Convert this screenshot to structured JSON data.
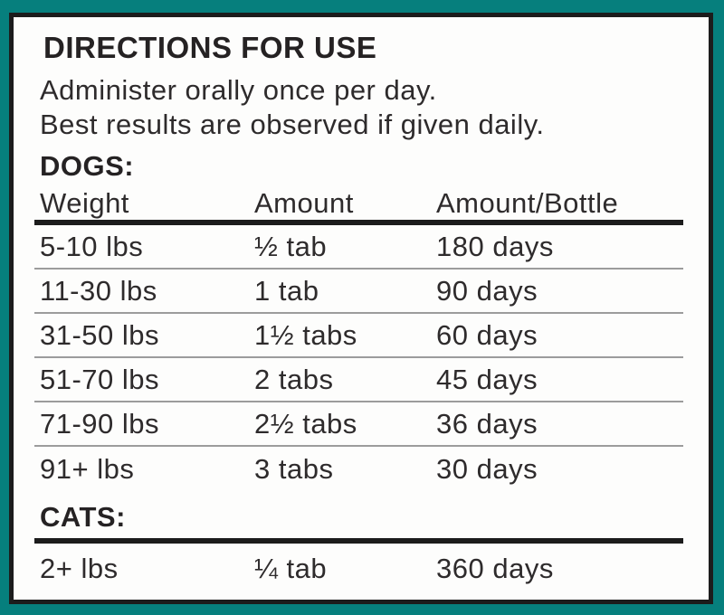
{
  "label": {
    "title": "DIRECTIONS FOR USE",
    "intro": {
      "line1": "Administer orally once per day.",
      "line2": "Best results are observed if given daily."
    },
    "dogs": {
      "heading": "DOGS:",
      "columns": {
        "weight": "Weight",
        "amount": "Amount",
        "bottle": "Amount/Bottle"
      },
      "rows": [
        {
          "weight": "5-10 lbs",
          "amount": "½ tab",
          "bottle": "180 days"
        },
        {
          "weight": "11-30 lbs",
          "amount": "1 tab",
          "bottle": "90 days"
        },
        {
          "weight": "31-50 lbs",
          "amount": "1½ tabs",
          "bottle": "60 days"
        },
        {
          "weight": "51-70 lbs",
          "amount": "2 tabs",
          "bottle": "45 days"
        },
        {
          "weight": "71-90 lbs",
          "amount": "2½ tabs",
          "bottle": "36 days"
        },
        {
          "weight": "91+ lbs",
          "amount": "3 tabs",
          "bottle": "30 days"
        }
      ]
    },
    "cats": {
      "heading": "CATS:",
      "rows": [
        {
          "weight": "2+ lbs",
          "amount": "¼ tab",
          "bottle": "360 days"
        }
      ]
    },
    "colors": {
      "frame_teal": "#067f7d",
      "border_black": "#1c1c1c",
      "text": "#2e2b2c",
      "row_separator": "#9c9c9c"
    }
  }
}
